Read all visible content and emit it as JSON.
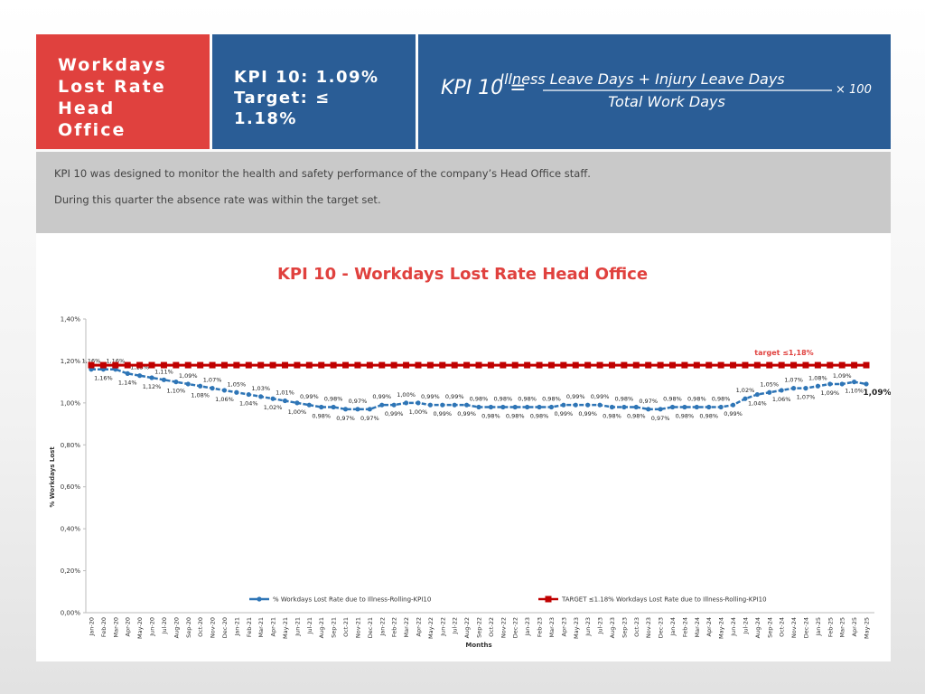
{
  "header": {
    "title": "Workdays Lost Rate Head Office",
    "kpi": "KPI 10: 1.09%",
    "target": "Target: ≤ 1.18%"
  },
  "formula": {
    "lhs": "KPI  10  =",
    "numerator": "Illness Leave Days + Injury Leave Days",
    "denominator": "Total Work Days",
    "multiplier": "× 100"
  },
  "description": [
    "KPI 10 was designed to monitor the health and safety performance of the company’s Head Office staff.",
    "During this quarter the absence rate was within the target set."
  ],
  "chart_data": {
    "type": "line",
    "title": "KPI 10 - Workdays Lost  Rate Head Office",
    "x_label": "Months",
    "y_label": "% Workdays Lost",
    "annotation": "target ≤1,18%",
    "categories": [
      "Jan-20",
      "Feb-20",
      "Mar-20",
      "Apr-20",
      "May-20",
      "Jun-20",
      "Jul-20",
      "Aug-20",
      "Sep-20",
      "Oct-20",
      "Nov-20",
      "Dec-20",
      "Jan-21",
      "Feb-21",
      "Mar-21",
      "Apr-21",
      "May-21",
      "Jun-21",
      "Jul-21",
      "Aug-21",
      "Sep-21",
      "Oct-21",
      "Nov-21",
      "Dec-21",
      "Jan-22",
      "Feb-22",
      "Mar-22",
      "Apr-22",
      "May-22",
      "Jun-22",
      "Jul-22",
      "Aug-22",
      "Sep-22",
      "Oct-22",
      "Nov-22",
      "Dec-22",
      "Jan-23",
      "Feb-23",
      "Mar-23",
      "Apr-23",
      "May-23",
      "Jun-23",
      "Jul-23",
      "Aug-23",
      "Sep-23",
      "Oct-23",
      "Nov-23",
      "Dec-23",
      "Jan-24",
      "Feb-24",
      "Mar-24",
      "Apr-24",
      "May-24",
      "Jun-24",
      "Jul-24",
      "Aug-24",
      "Sep-24",
      "Oct-24",
      "Nov-24",
      "Dec-24",
      "Jan-25",
      "Feb-25",
      "Mar-25",
      "Apr-25",
      "May-25"
    ],
    "series": [
      {
        "name": "% Workdays Lost Rate due to Illness-Rolling-KPI10",
        "color": "#2e75b6",
        "values": [
          1.16,
          1.16,
          1.16,
          1.14,
          1.13,
          1.12,
          1.11,
          1.1,
          1.09,
          1.08,
          1.07,
          1.06,
          1.05,
          1.04,
          1.03,
          1.02,
          1.01,
          1.0,
          0.99,
          0.98,
          0.98,
          0.97,
          0.97,
          0.97,
          0.99,
          0.99,
          1.0,
          1.0,
          0.99,
          0.99,
          0.99,
          0.99,
          0.98,
          0.98,
          0.98,
          0.98,
          0.98,
          0.98,
          0.98,
          0.99,
          0.99,
          0.99,
          0.99,
          0.98,
          0.98,
          0.98,
          0.97,
          0.97,
          0.98,
          0.98,
          0.98,
          0.98,
          0.98,
          0.99,
          1.02,
          1.04,
          1.05,
          1.06,
          1.07,
          1.07,
          1.08,
          1.09,
          1.09,
          1.1,
          1.09
        ],
        "value_labels": [
          "1,16%",
          "1,16%",
          "1,16%",
          "1,14%",
          "1,13%",
          "1,12%",
          "1,11%",
          "1,10%",
          "1,09%",
          "1,08%",
          "1,07%",
          "1,06%",
          "1,05%",
          "1,04%",
          "1,03%",
          "1,02%",
          "1,01%",
          "1,00%",
          "0,99%",
          "0,98%",
          "0,98%",
          "0,97%",
          "0,97%",
          "0,97%",
          "0,99%",
          "0,99%",
          "1,00%",
          "1,00%",
          "0,99%",
          "0,99%",
          "0,99%",
          "0,99%",
          "0,98%",
          "0,98%",
          "0,98%",
          "0,98%",
          "0,98%",
          "0,98%",
          "0,98%",
          "0,99%",
          "0,99%",
          "0,99%",
          "0,99%",
          "0,98%",
          "0,98%",
          "0,98%",
          "0,97%",
          "0,97%",
          "0,98%",
          "0,98%",
          "0,98%",
          "0,98%",
          "0,98%",
          "0,99%",
          "1,02%",
          "1,04%",
          "1,05%",
          "1,06%",
          "1,07%",
          "1,07%",
          "1,08%",
          "1,09%",
          "1,09%",
          "1,10%",
          "1,09%"
        ]
      },
      {
        "name": "TARGET ≤1.18% Workdays Lost Rate due to Illness-Rolling-KPI10",
        "color": "#c00000",
        "values": [
          1.18,
          1.18,
          1.18,
          1.18,
          1.18,
          1.18,
          1.18,
          1.18,
          1.18,
          1.18,
          1.18,
          1.18,
          1.18,
          1.18,
          1.18,
          1.18,
          1.18,
          1.18,
          1.18,
          1.18,
          1.18,
          1.18,
          1.18,
          1.18,
          1.18,
          1.18,
          1.18,
          1.18,
          1.18,
          1.18,
          1.18,
          1.18,
          1.18,
          1.18,
          1.18,
          1.18,
          1.18,
          1.18,
          1.18,
          1.18,
          1.18,
          1.18,
          1.18,
          1.18,
          1.18,
          1.18,
          1.18,
          1.18,
          1.18,
          1.18,
          1.18,
          1.18,
          1.18,
          1.18,
          1.18,
          1.18,
          1.18,
          1.18,
          1.18,
          1.18,
          1.18,
          1.18,
          1.18,
          1.18,
          1.18
        ]
      }
    ],
    "ylim": [
      0,
      1.4
    ],
    "yticks": [
      {
        "value": 0,
        "label": "0,00%"
      },
      {
        "value": 0.2,
        "label": "0,20%"
      },
      {
        "value": 0.4,
        "label": "0,40%"
      },
      {
        "value": 0.6,
        "label": "0,60%"
      },
      {
        "value": 0.8,
        "label": "0,80%"
      },
      {
        "value": 1.0,
        "label": "1,00%"
      },
      {
        "value": 1.2,
        "label": "1,20%"
      },
      {
        "value": 1.4,
        "label": "1,40%"
      }
    ],
    "grid": false,
    "legend": "bottom"
  }
}
